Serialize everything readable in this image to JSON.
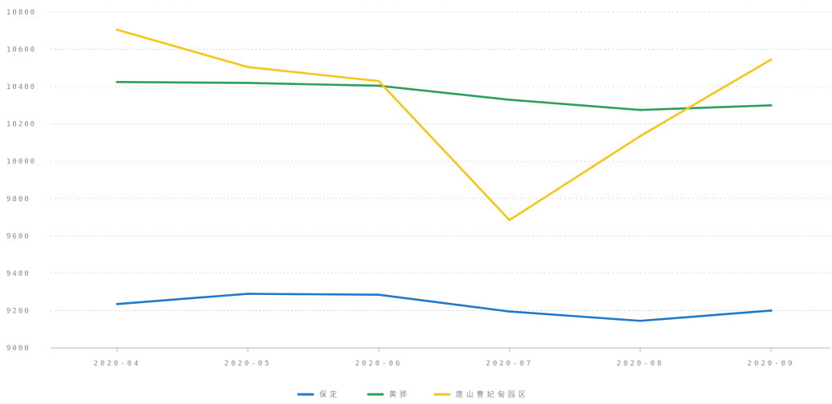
{
  "chart_data": {
    "type": "line",
    "title": "",
    "xlabel": "",
    "ylabel": "",
    "categories": [
      "2020-04",
      "2020-05",
      "2020-06",
      "2020-07",
      "2020-08",
      "2020-09"
    ],
    "category_labels": [
      "2020-04",
      "2020-05",
      "2020-06",
      "2020-07",
      "2020-08",
      "2020-09"
    ],
    "ylim": [
      9000,
      10800
    ],
    "yticks": [
      9000,
      9200,
      9400,
      9600,
      9800,
      10000,
      10200,
      10400,
      10600,
      10800
    ],
    "grid": true,
    "legend_position": "bottom-center",
    "series": [
      {
        "name": "保定",
        "color": "#1f78c8",
        "values": [
          9235,
          9290,
          9285,
          9195,
          9145,
          9200
        ]
      },
      {
        "name": "黄骅",
        "color": "#2e9e5b",
        "values": [
          10425,
          10420,
          10405,
          10330,
          10275,
          10300
        ]
      },
      {
        "name": "唐山曹妃甸园区",
        "color": "#f5c518",
        "values": [
          10705,
          10505,
          10430,
          9685,
          10135,
          10545
        ]
      }
    ]
  }
}
